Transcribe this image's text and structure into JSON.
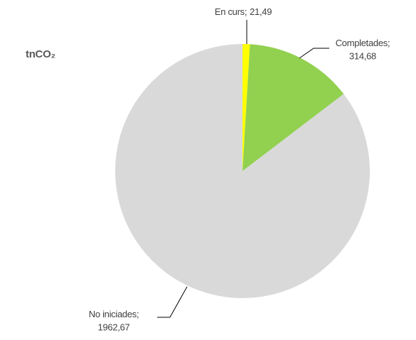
{
  "chart_data": {
    "type": "pie",
    "unit_label": "tnCO₂",
    "categories": [
      "En curs",
      "Completades",
      "No iniciades"
    ],
    "values": [
      21.49,
      314.68,
      1962.67
    ],
    "value_labels": [
      "21,49",
      "314,68",
      "1962,67"
    ],
    "label_separator": ";",
    "colors": [
      "#ffff00",
      "#92d050",
      "#d9d9d9"
    ]
  }
}
